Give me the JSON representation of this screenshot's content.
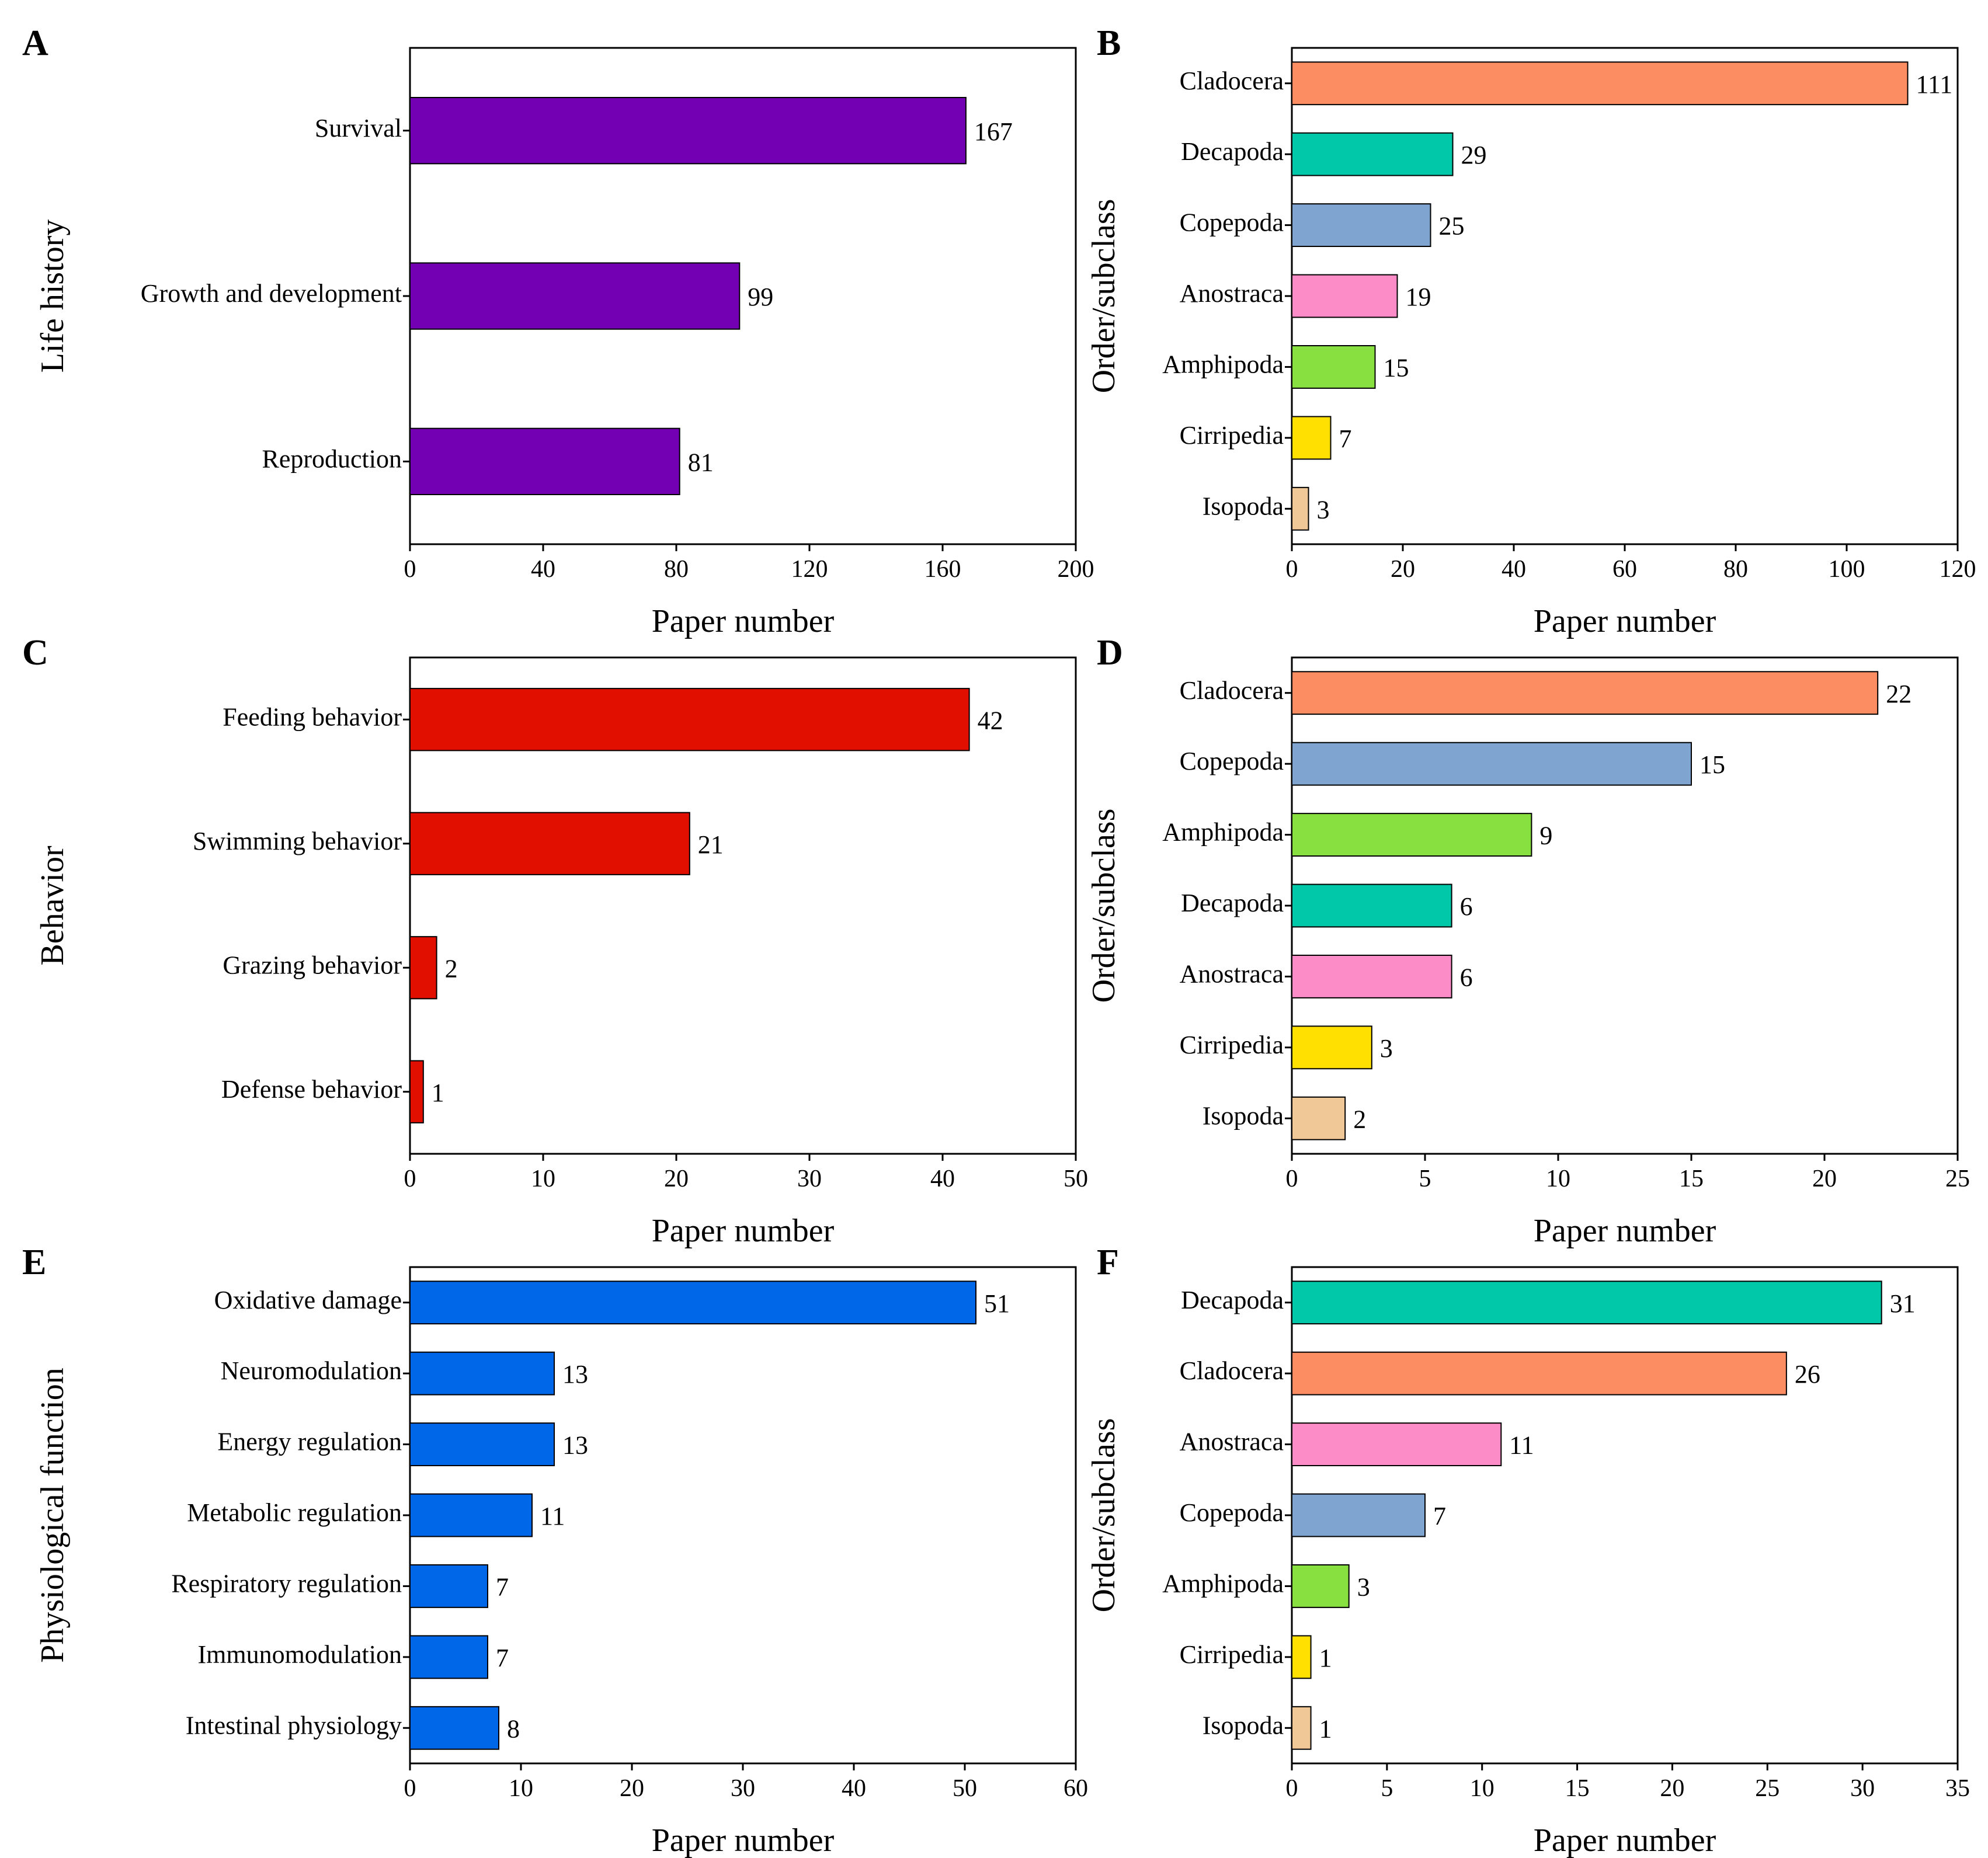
{
  "figure": {
    "panels_count": 6
  },
  "chart_data": [
    {
      "panel": "A",
      "type": "bar",
      "orientation": "horizontal",
      "categories": [
        "Survival",
        "Growth and development",
        "Reproduction"
      ],
      "values": [
        167,
        99,
        81
      ],
      "bar_color": "#7300b2",
      "xlabel": "Paper number",
      "ylabel": "Life history",
      "xlim": [
        0,
        200
      ],
      "xticks": [
        0,
        40,
        80,
        120,
        160,
        200
      ],
      "grid": false
    },
    {
      "panel": "B",
      "type": "bar",
      "orientation": "horizontal",
      "categories": [
        "Cladocera",
        "Decapoda",
        "Copepoda",
        "Anostraca",
        "Amphipoda",
        "Cirripedia",
        "Isopoda"
      ],
      "values": [
        111,
        29,
        25,
        19,
        15,
        7,
        3
      ],
      "bar_colors": [
        "#fc8d62",
        "#00c8a8",
        "#80a4d0",
        "#fc8cc8",
        "#88e040",
        "#ffe000",
        "#f0c898"
      ],
      "xlabel": "Paper number",
      "ylabel": "Order/subclass",
      "xlim": [
        0,
        120
      ],
      "xticks": [
        0,
        20,
        40,
        60,
        80,
        100,
        120
      ],
      "grid": false
    },
    {
      "panel": "C",
      "type": "bar",
      "orientation": "horizontal",
      "categories": [
        "Feeding behavior",
        "Swimming behavior",
        "Grazing behavior",
        "Defense behavior"
      ],
      "values": [
        42,
        21,
        2,
        1
      ],
      "bar_color": "#e00f00",
      "xlabel": "Paper number",
      "ylabel": "Behavior",
      "xlim": [
        0,
        50
      ],
      "xticks": [
        0,
        10,
        20,
        30,
        40,
        50
      ],
      "grid": false
    },
    {
      "panel": "D",
      "type": "bar",
      "orientation": "horizontal",
      "categories": [
        "Cladocera",
        "Copepoda",
        "Amphipoda",
        "Decapoda",
        "Anostraca",
        "Cirripedia",
        "Isopoda"
      ],
      "values": [
        22,
        15,
        9,
        6,
        6,
        3,
        2
      ],
      "bar_colors": [
        "#fc8d62",
        "#80a4d0",
        "#88e040",
        "#00c8a8",
        "#fc8cc8",
        "#ffe000",
        "#f0c898"
      ],
      "xlabel": "Paper number",
      "ylabel": "Order/subclass",
      "xlim": [
        0,
        25
      ],
      "xticks": [
        0,
        5,
        10,
        15,
        20,
        25
      ],
      "grid": false
    },
    {
      "panel": "E",
      "type": "bar",
      "orientation": "horizontal",
      "categories": [
        "Oxidative damage",
        "Neuromodulation",
        "Energy regulation",
        "Metabolic regulation",
        "Respiratory regulation",
        "Immunomodulation",
        "Intestinal physiology"
      ],
      "values": [
        51,
        13,
        13,
        11,
        7,
        7,
        8
      ],
      "bar_color": "#0068e8",
      "xlabel": "Paper number",
      "ylabel": "Physiological function",
      "xlim": [
        0,
        60
      ],
      "xticks": [
        0,
        10,
        20,
        30,
        40,
        50,
        60
      ],
      "grid": false
    },
    {
      "panel": "F",
      "type": "bar",
      "orientation": "horizontal",
      "categories": [
        "Decapoda",
        "Cladocera",
        "Anostraca",
        "Copepoda",
        "Amphipoda",
        "Cirripedia",
        "Isopoda"
      ],
      "values": [
        31,
        26,
        11,
        7,
        3,
        1,
        1
      ],
      "bar_colors": [
        "#00c8a8",
        "#fc8d62",
        "#fc8cc8",
        "#80a4d0",
        "#88e040",
        "#ffe000",
        "#f0c898"
      ],
      "xlabel": "Paper number",
      "ylabel": "Order/subclass",
      "xlim": [
        0,
        35
      ],
      "xticks": [
        0,
        5,
        10,
        15,
        20,
        25,
        30,
        35
      ],
      "grid": false
    }
  ]
}
